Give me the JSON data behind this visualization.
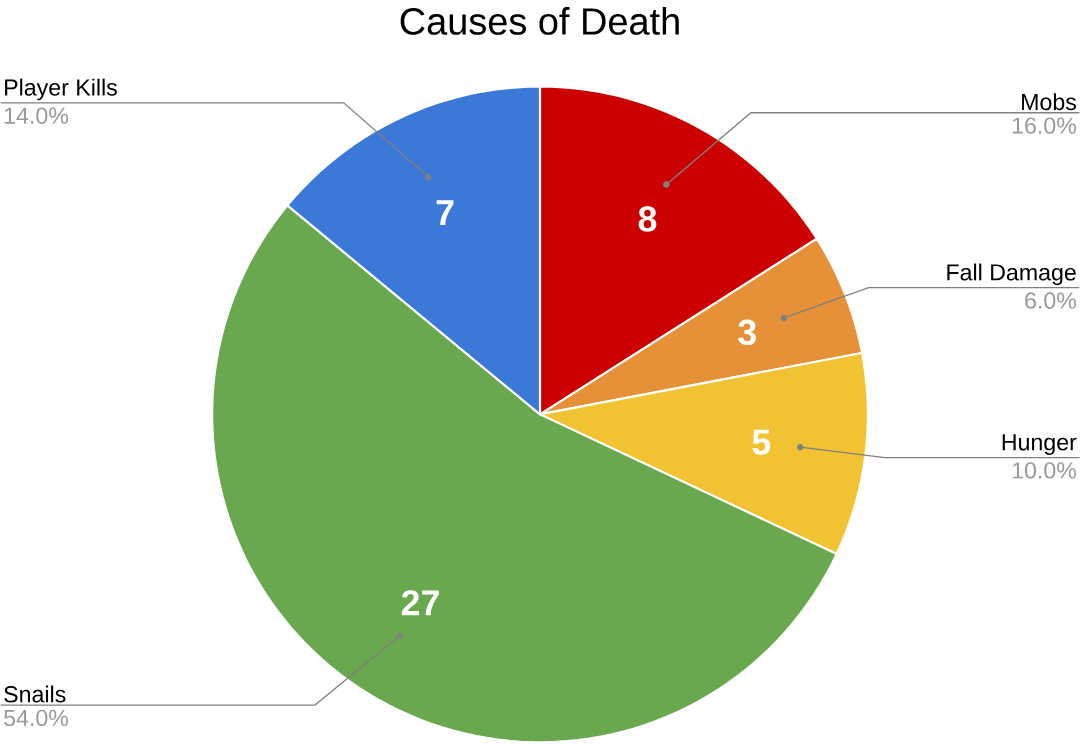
{
  "chart_data": {
    "type": "pie",
    "title": "Causes of Death",
    "categories": [
      "Mobs",
      "Fall Damage",
      "Hunger",
      "Snails",
      "Player Kills"
    ],
    "values": [
      8,
      3,
      5,
      27,
      7
    ],
    "colors": [
      "#cc0000",
      "#e69138",
      "#f1c232",
      "#6aa84f",
      "#3c78d8"
    ],
    "annotations": [
      "16.0%",
      "6.0%",
      "10.0%",
      "54.0%",
      "14.0%"
    ],
    "data_labels": true
  }
}
